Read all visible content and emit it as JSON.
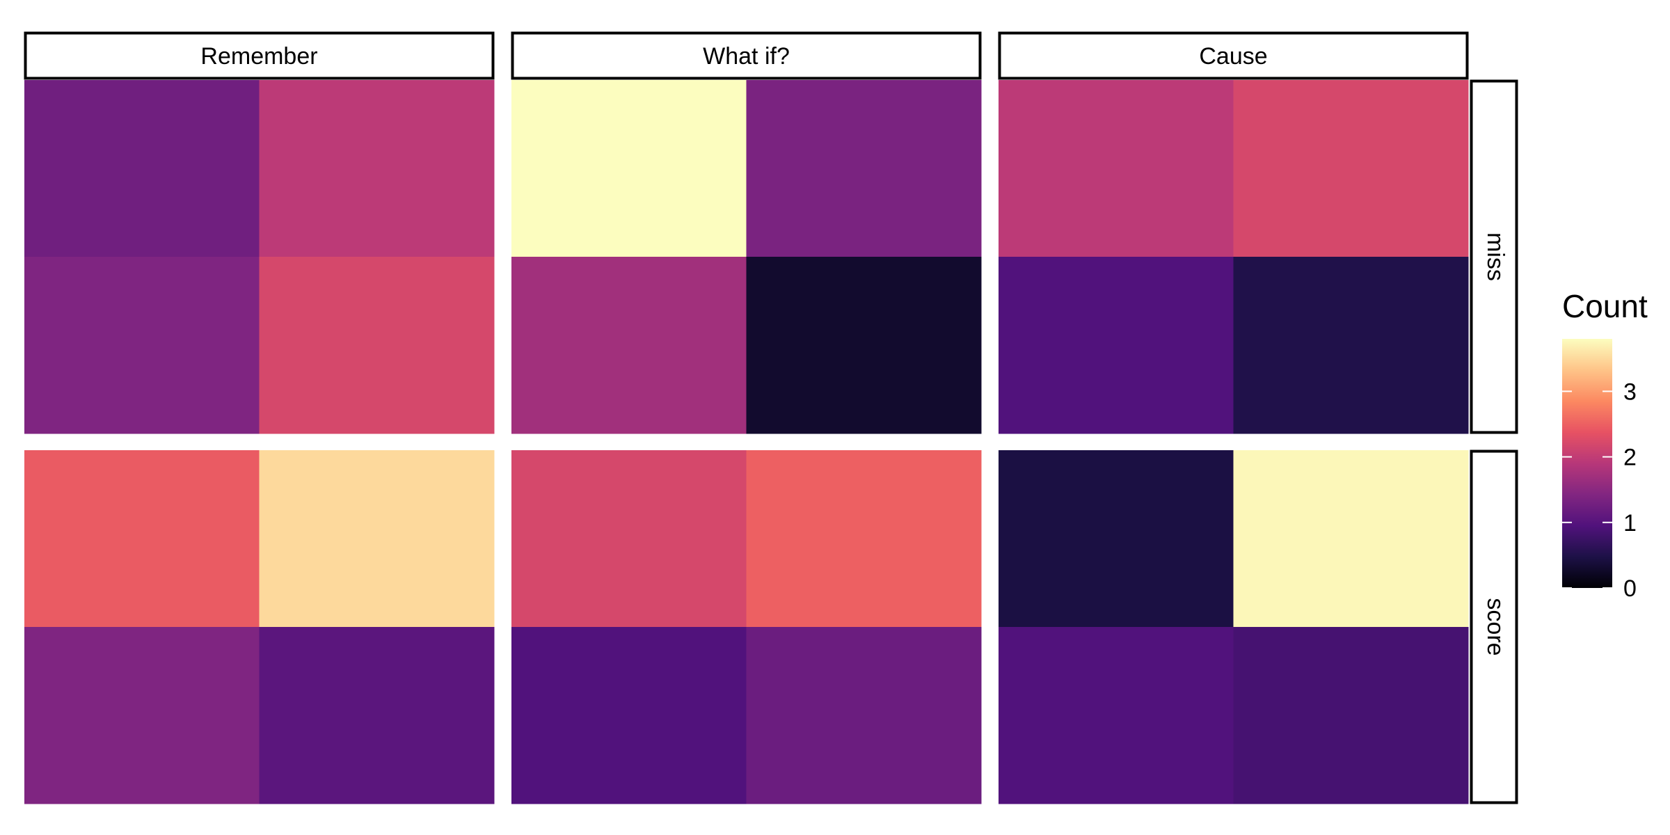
{
  "chart_data": {
    "type": "heatmap",
    "facet_cols": [
      "Remember",
      "What if?",
      "Cause"
    ],
    "facet_rows": [
      "miss",
      "score"
    ],
    "panels": [
      {
        "col": "Remember",
        "row": "miss",
        "cells": [
          [
            1.25,
            1.95
          ],
          [
            1.4,
            2.2
          ]
        ]
      },
      {
        "col": "What if?",
        "row": "miss",
        "cells": [
          [
            3.8,
            1.35
          ],
          [
            1.7,
            0.3
          ]
        ]
      },
      {
        "col": "Cause",
        "row": "miss",
        "cells": [
          [
            1.95,
            2.2
          ],
          [
            0.95,
            0.5
          ]
        ]
      },
      {
        "col": "Remember",
        "row": "score",
        "cells": [
          [
            2.45,
            3.5
          ],
          [
            1.4,
            1.05
          ]
        ]
      },
      {
        "col": "What if?",
        "row": "score",
        "cells": [
          [
            2.2,
            2.5
          ],
          [
            0.95,
            1.2
          ]
        ]
      },
      {
        "col": "Cause",
        "row": "score",
        "cells": [
          [
            0.45,
            3.75
          ],
          [
            0.95,
            0.85
          ]
        ]
      }
    ],
    "legend": {
      "title": "Count",
      "min": 0,
      "max": 3.8,
      "ticks": [
        "0",
        "1",
        "2",
        "3"
      ],
      "palette": [
        "#000004",
        "#1d1147",
        "#51127c",
        "#822681",
        "#b73779",
        "#e75263",
        "#fc8961",
        "#fec488",
        "#fcfdbf"
      ]
    }
  }
}
